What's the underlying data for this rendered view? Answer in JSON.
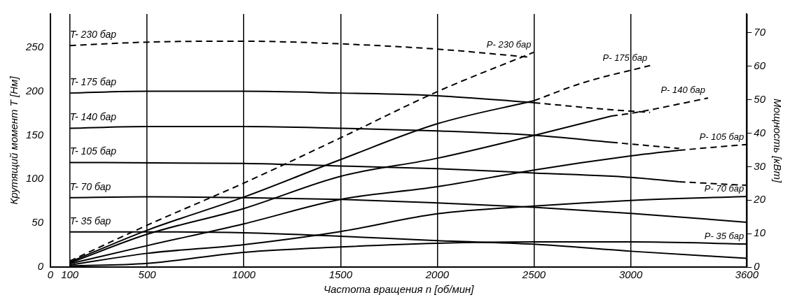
{
  "chart_data": {
    "type": "line",
    "xlabel": "Частота вращения n [об/мин]",
    "ylabel": "Крутящий момент T [Нм]",
    "y2label": "Мощность [кВт]",
    "xlim": [
      0,
      3600
    ],
    "xticks": [
      0,
      100,
      500,
      1000,
      1500,
      2000,
      2500,
      3000,
      3600
    ],
    "ylim": [
      0,
      288
    ],
    "yticks": [
      0,
      50,
      100,
      150,
      200,
      250
    ],
    "y2lim": [
      0,
      75.6
    ],
    "y2ticks": [
      0,
      10,
      20,
      30,
      40,
      50,
      60,
      70
    ],
    "grid": "x",
    "legend": false,
    "marker": "none",
    "series": [
      {
        "name": "T- 230 бар",
        "color": "#000000",
        "line_style": "dashed",
        "x": [
          100,
          500,
          1000,
          1500,
          2000,
          2470
        ],
        "values": [
          252,
          256,
          257,
          254,
          248,
          239
        ]
      },
      {
        "name": "T- 175 бар",
        "color": "#000000",
        "line_style": "solid",
        "x": [
          100,
          500,
          1000,
          1500,
          2000,
          2500
        ],
        "values": [
          198,
          200,
          200,
          198,
          195,
          187
        ]
      },
      {
        "color": "#000000",
        "line_style": "dashed",
        "x": [
          2500,
          2900,
          3100
        ],
        "values": [
          187,
          179,
          176
        ]
      },
      {
        "name": "T- 140 бар",
        "color": "#000000",
        "line_style": "solid",
        "x": [
          100,
          500,
          1000,
          1500,
          2000,
          2500,
          2900
        ],
        "values": [
          158,
          160,
          160,
          158,
          155,
          150,
          142
        ]
      },
      {
        "color": "#000000",
        "line_style": "dashed",
        "x": [
          2900,
          3000,
          3250
        ],
        "values": [
          142,
          140,
          135
        ]
      },
      {
        "name": "T- 105 бар",
        "color": "#000000",
        "line_style": "solid",
        "x": [
          100,
          1000,
          1500,
          2000,
          2500,
          3000,
          3250
        ],
        "values": [
          119,
          118,
          115,
          112,
          107,
          102,
          97
        ]
      },
      {
        "color": "#000000",
        "line_style": "dashed",
        "x": [
          3250,
          3600
        ],
        "values": [
          97,
          93
        ]
      },
      {
        "name": "T- 70 бар",
        "color": "#000000",
        "line_style": "solid",
        "x": [
          100,
          500,
          1000,
          1500,
          2000,
          2500,
          3000,
          3600
        ],
        "values": [
          79,
          80,
          79,
          77,
          73,
          68,
          61,
          51
        ]
      },
      {
        "name": "T- 35 бар",
        "color": "#000000",
        "line_style": "solid",
        "x": [
          100,
          500,
          1000,
          1500,
          2000,
          2500,
          3000,
          3600
        ],
        "values": [
          40,
          40,
          39,
          35,
          30,
          26,
          18,
          10
        ]
      },
      {
        "name": "P- 230 бар",
        "color": "#000000",
        "line_style": "dashed",
        "axis": "y2",
        "x": [
          100,
          500,
          1000,
          1500,
          2000,
          2500
        ],
        "values": [
          1.8,
          12.5,
          25.1,
          38.6,
          52.4,
          64.2
        ]
      },
      {
        "color": "#000000",
        "line_style": "solid",
        "axis": "y2",
        "x": [
          100,
          500,
          1000,
          1500,
          2000,
          2500
        ],
        "values": [
          1.5,
          11,
          20.9,
          32.1,
          42.8,
          49.7
        ]
      },
      {
        "name": "P- 175 бар",
        "color": "#000000",
        "line_style": "dashed",
        "axis": "y2",
        "x": [
          2500,
          2750,
          3100
        ],
        "values": [
          49.7,
          55,
          60.2
        ]
      },
      {
        "color": "#000000",
        "line_style": "solid",
        "axis": "y2",
        "x": [
          100,
          500,
          1000,
          1500,
          2000,
          2500,
          2900
        ],
        "values": [
          1.2,
          9.8,
          17.5,
          27.1,
          32.5,
          39.3,
          45.1
        ]
      },
      {
        "name": "P- 140 бар",
        "color": "#000000",
        "line_style": "dashed",
        "axis": "y2",
        "x": [
          2900,
          3000,
          3300,
          3400
        ],
        "values": [
          45.1,
          45.9,
          49.3,
          50.5
        ]
      },
      {
        "color": "#000000",
        "line_style": "solid",
        "axis": "y2",
        "x": [
          100,
          500,
          1000,
          1500,
          2000,
          2500,
          3000,
          3250
        ],
        "values": [
          1,
          6.4,
          12.9,
          20.2,
          24,
          29,
          33.2,
          34.9
        ]
      },
      {
        "name": "P- 105 бар",
        "color": "#000000",
        "line_style": "dashed",
        "axis": "y2",
        "x": [
          3250,
          3600
        ],
        "values": [
          34.9,
          36.6
        ]
      },
      {
        "name": "P- 70 бар",
        "color": "#000000",
        "line_style": "solid",
        "axis": "y2",
        "x": [
          100,
          500,
          1000,
          1500,
          2000,
          2500,
          3000,
          3600
        ],
        "values": [
          0.6,
          4.1,
          6.7,
          10.6,
          15.9,
          18.2,
          19.9,
          21.1
        ]
      },
      {
        "name": "P- 35 бар",
        "color": "#000000",
        "line_style": "solid",
        "axis": "y2",
        "x": [
          100,
          500,
          1000,
          1500,
          2000,
          2500,
          3000,
          3600
        ],
        "values": [
          0.3,
          1.1,
          4.4,
          6,
          7.1,
          7.5,
          7.5,
          6.9
        ]
      }
    ]
  }
}
